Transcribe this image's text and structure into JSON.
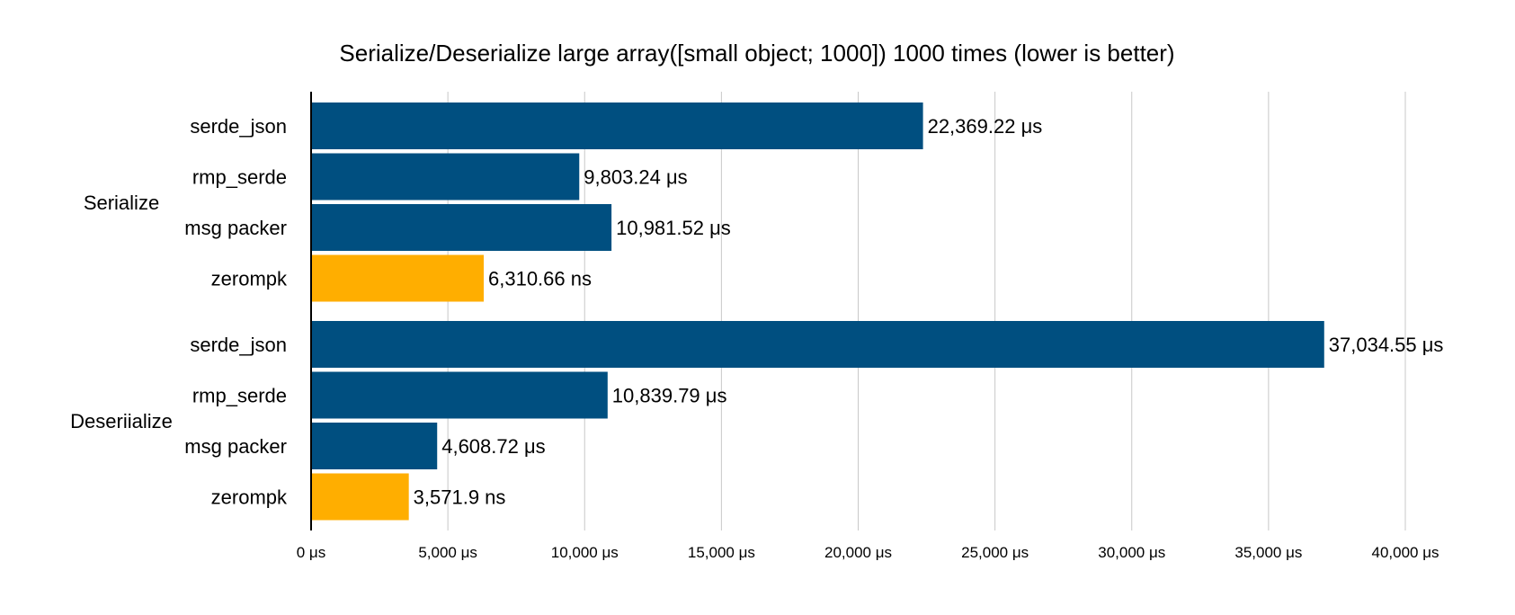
{
  "chart_data": {
    "type": "bar",
    "orientation": "horizontal",
    "title": "Serialize/Deserialize large array([small object; 1000]) 1000 times (lower is better)",
    "xlabel": "",
    "ylabel": "",
    "xlim": [
      0,
      40000
    ],
    "x_ticks": [
      0,
      5000,
      10000,
      15000,
      20000,
      25000,
      30000,
      35000,
      40000
    ],
    "x_tick_labels": [
      "0 μs",
      "5,000 μs",
      "10,000 μs",
      "15,000 μs",
      "20,000 μs",
      "25,000 μs",
      "30,000 μs",
      "35,000 μs",
      "40,000 μs"
    ],
    "grid": "vertical",
    "legend": "none",
    "groups": [
      {
        "label": "Serialize",
        "bars": [
          {
            "category": "serde_json",
            "value": 22369.22,
            "label": "22,369.22 μs",
            "color": "#004f80"
          },
          {
            "category": "rmp_serde",
            "value": 9803.24,
            "label": "9,803.24 μs",
            "color": "#004f80"
          },
          {
            "category": "msg packer",
            "value": 10981.52,
            "label": "10,981.52 μs",
            "color": "#004f80"
          },
          {
            "category": "zerompk",
            "value": 6310.66,
            "label": "6,310.66 ns",
            "color": "#ffae00"
          }
        ]
      },
      {
        "label": "Deseriialize",
        "bars": [
          {
            "category": "serde_json",
            "value": 37034.55,
            "label": "37,034.55 μs",
            "color": "#004f80"
          },
          {
            "category": "rmp_serde",
            "value": 10839.79,
            "label": "10,839.79 μs",
            "color": "#004f80"
          },
          {
            "category": "msg packer",
            "value": 4608.72,
            "label": "4,608.72 μs",
            "color": "#004f80"
          },
          {
            "category": "zerompk",
            "value": 3571.9,
            "label": "3,571.9 ns",
            "color": "#ffae00"
          }
        ]
      }
    ]
  }
}
